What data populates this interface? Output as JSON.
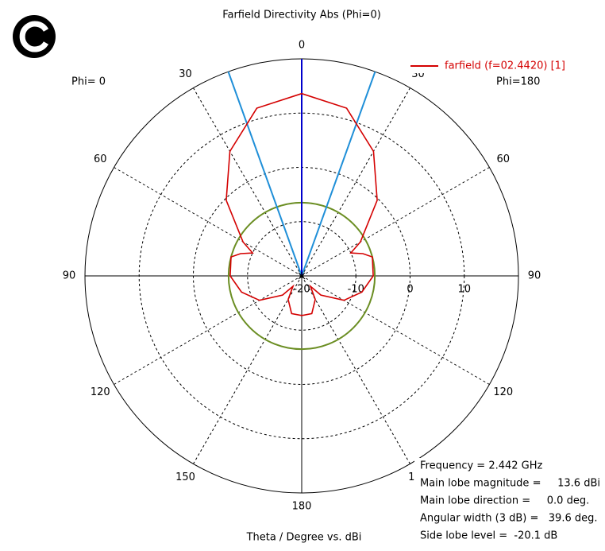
{
  "chart_data": {
    "type": "polar",
    "title": "Farfield Directivity Abs (Phi=0)",
    "left_label": "Phi=  0",
    "right_label": "Phi=180",
    "x_label": "Theta / Degree vs. dBi",
    "rlim": [
      -20,
      20
    ],
    "rticks": [
      -20,
      -10,
      0,
      10
    ],
    "angle_ticks": [
      0,
      30,
      60,
      90,
      120,
      150,
      180
    ],
    "series": [
      {
        "name": "farfield (f=02.4420) [1]",
        "color": "#d40000",
        "x": [
          0,
          15,
          30,
          45,
          60,
          65,
          70,
          75,
          90,
          105,
          120,
          135,
          140,
          150,
          165,
          180,
          195,
          210,
          220,
          225,
          240,
          255,
          270,
          285,
          290,
          295,
          300,
          315,
          330,
          345,
          360
        ],
        "values": [
          13.6,
          12.0,
          6.5,
          -0.3,
          -7.5,
          -10,
          -8,
          -6.5,
          -6.8,
          -8.5,
          -11,
          -15,
          -17.5,
          -15,
          -12.8,
          -12.7,
          -12.8,
          -15,
          -17.5,
          -15,
          -11,
          -8.5,
          -6.8,
          -6.5,
          -8,
          -10,
          -7.5,
          -0.3,
          6.5,
          12.0,
          13.6
        ]
      }
    ],
    "main_lobe_line": {
      "angle": 0,
      "color": "#0000cc"
    },
    "beam_width_lines": {
      "angles": [
        19.8,
        -19.8
      ],
      "color": "#1f8fd8"
    },
    "side_lobe_circle": {
      "value": -6.5,
      "color": "#6b8e23"
    },
    "info": [
      "Frequency = 2.442 GHz",
      "Main lobe magnitude =     13.6 dBi",
      "Main lobe direction =     0.0 deg.",
      "Angular width (3 dB) =   39.6 deg.",
      "Side lobe level =  -20.1 dB"
    ]
  }
}
